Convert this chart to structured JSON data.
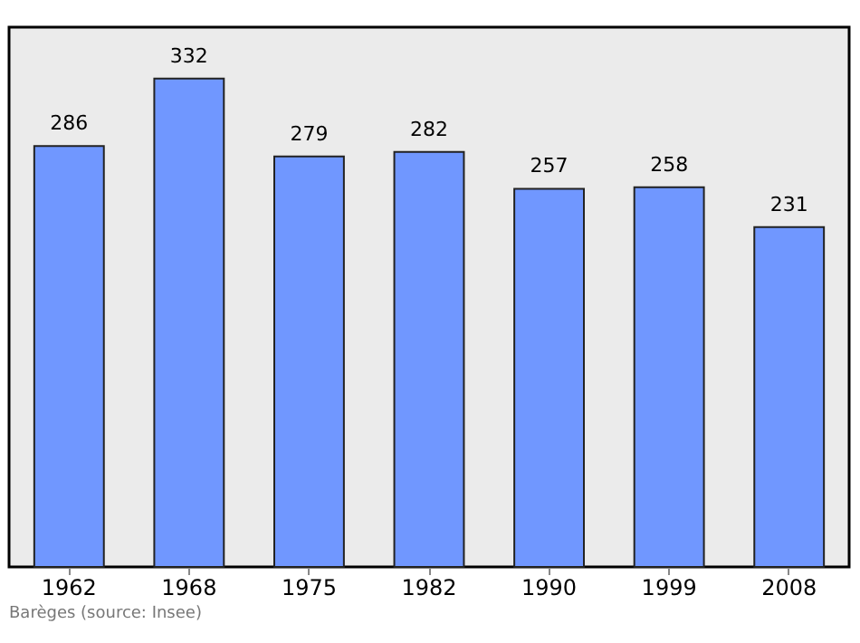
{
  "chart_data": {
    "type": "bar",
    "categories": [
      "1962",
      "1968",
      "1975",
      "1982",
      "1990",
      "1999",
      "2008"
    ],
    "values": [
      286,
      332,
      279,
      282,
      257,
      258,
      231
    ],
    "color": "#7097ff",
    "data_labels": true,
    "grid": false,
    "tick_labels": "x",
    "annotations": [
      "Barèges   (source: Insee)"
    ]
  }
}
